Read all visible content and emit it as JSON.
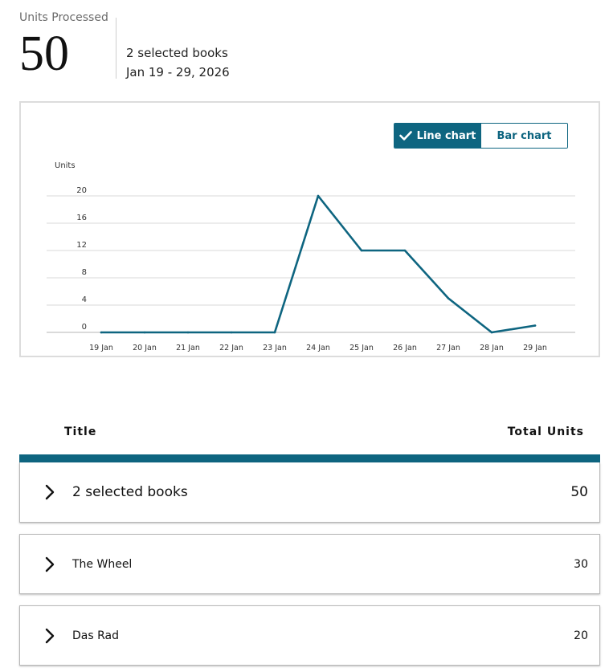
{
  "summary": {
    "caption": "Units Processed",
    "total": "50",
    "selection": "2 selected books",
    "date_range": "Jan 19 - 29, 2026"
  },
  "toggle": {
    "line_label": "Line chart",
    "bar_label": "Bar chart",
    "selected": "line"
  },
  "colors": {
    "accent": "#0e6580",
    "gridline": "#d9d9d9",
    "card_border": "#dcdcdc"
  },
  "chart_data": {
    "type": "line",
    "ylabel": "Units",
    "xlabel": "",
    "title": "",
    "x": [
      "19 Jan",
      "20 Jan",
      "21 Jan",
      "22 Jan",
      "23 Jan",
      "24 Jan",
      "25 Jan",
      "26 Jan",
      "27 Jan",
      "28 Jan",
      "29 Jan"
    ],
    "series": [
      {
        "values": [
          0,
          0,
          0,
          0,
          0,
          20,
          12,
          12,
          5,
          0,
          1
        ]
      }
    ],
    "yticks": [
      "0",
      "4",
      "8",
      "12",
      "16",
      "20"
    ],
    "ylim": [
      0,
      20
    ],
    "grid": true,
    "legend": "none"
  },
  "table": {
    "col_title": "Title",
    "col_total": "Total Units",
    "summary_row": {
      "label": "2 selected books",
      "value": "50"
    },
    "rows": [
      {
        "label": "The Wheel",
        "value": "30"
      },
      {
        "label": "Das Rad",
        "value": "20"
      }
    ]
  }
}
